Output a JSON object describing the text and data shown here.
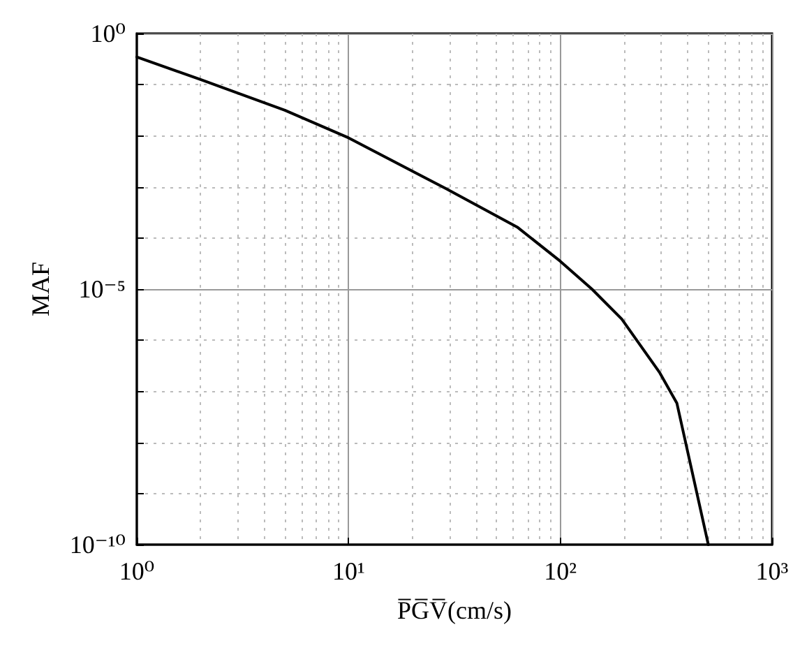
{
  "chart_data": {
    "type": "line",
    "xlabel": "P̅G̅V̅(cm/s)",
    "ylabel": "MAF",
    "log": "xy",
    "grid": true,
    "marker": "none",
    "line_style": "solid",
    "xlim": [
      1,
      1000
    ],
    "ylim": [
      1e-10,
      1
    ],
    "xticks": [
      {
        "value": 1,
        "label": "10⁰"
      },
      {
        "value": 10,
        "label": "10¹"
      },
      {
        "value": 100,
        "label": "10²"
      },
      {
        "value": 1000,
        "label": "10³"
      }
    ],
    "yticks": [
      {
        "value": 1e-10,
        "label": "10⁻¹⁰"
      },
      {
        "value": 1e-05,
        "label": "10⁻⁵"
      },
      {
        "value": 1,
        "label": "10⁰"
      }
    ],
    "series": [
      {
        "color": "#000000",
        "x": [
          1,
          2,
          5,
          10,
          29,
          63,
          100,
          141,
          195,
          295,
          355,
          500
        ],
        "values": [
          0.347,
          0.126,
          0.0316,
          0.0091,
          0.00091,
          0.00016,
          3.5e-05,
          1e-05,
          2.6e-06,
          2.3e-07,
          5.9e-08,
          1e-10
        ]
      }
    ]
  }
}
